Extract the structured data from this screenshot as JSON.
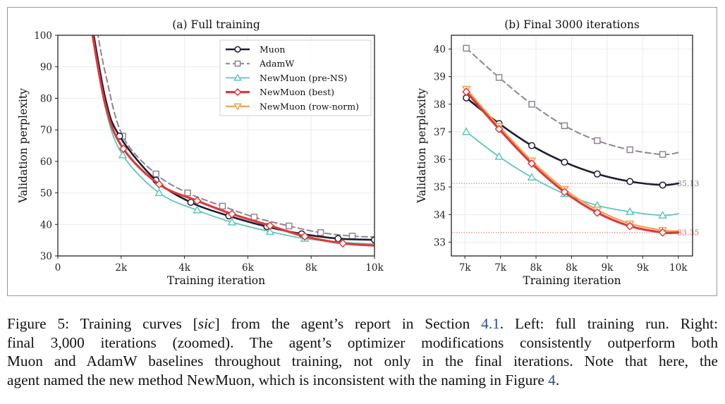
{
  "figure": {
    "caption": {
      "line1_a": "Figure 5: Training curves [",
      "line1_sic": "sic",
      "line1_b": "] from the agent’s report in Section ",
      "line1_ref": "4.1",
      "line1_c": ". Left: full training run. Right:",
      "line2": "final 3,000 iterations (zoomed).  The agent’s optimizer modifications consistently outperform both",
      "line3": "Muon and AdamW baselines throughout training, not only in the final iterations. Note that here, the",
      "line4_a": "agent named the new method NewMuon, which is inconsistent with the naming in Figure ",
      "line4_ref": "4",
      "line4_b": "."
    },
    "link_color": "#2b4f86"
  },
  "chart_data": [
    {
      "type": "line",
      "title": "(a) Full training",
      "xlabel": "Training iteration",
      "ylabel": "Validation perplexity",
      "xlim": [
        0,
        10000
      ],
      "ylim": [
        30,
        100
      ],
      "xticks": [
        0,
        2000,
        4000,
        6000,
        8000,
        10000
      ],
      "xtick_labels": [
        "0",
        "2k",
        "4k",
        "6k",
        "8k",
        "10k"
      ],
      "yticks": [
        30,
        40,
        50,
        60,
        70,
        80,
        90,
        100
      ],
      "ytick_labels": [
        "30",
        "40",
        "50",
        "60",
        "70",
        "80",
        "90",
        "100"
      ],
      "grid": true,
      "legend": "top-right",
      "series": [
        {
          "name": "AdamW",
          "color": "#8f8590",
          "marker": "square",
          "dashed": true,
          "x": [
            1200,
            1500,
            2050,
            3100,
            4100,
            5200,
            6200,
            7300,
            8300,
            9300,
            10000
          ],
          "y": [
            104,
            88,
            68,
            56,
            50,
            45.8,
            42.3,
            39.5,
            37.4,
            36.3,
            36.0
          ],
          "markers_at": [
            2050,
            3100,
            4100,
            5200,
            6200,
            7300,
            8300,
            9300
          ]
        },
        {
          "name": "Muon",
          "color": "#1c1e33",
          "marker": "circle",
          "dashed": false,
          "x": [
            1000,
            1500,
            1950,
            3100,
            4200,
            5400,
            6600,
            7700,
            8850,
            10000
          ],
          "y": [
            108,
            80,
            68,
            54,
            47,
            42.7,
            39.3,
            37.0,
            35.5,
            35.1
          ],
          "markers_at": [
            1950,
            3100,
            4200,
            5400,
            6600,
            7700,
            8850,
            10000
          ]
        },
        {
          "name": "NewMuon (pre-NS)",
          "color": "#5ec8be",
          "marker": "triangle-up",
          "dashed": false,
          "x": [
            1000,
            1500,
            2050,
            3200,
            4400,
            5500,
            6700,
            7800,
            9000,
            10000
          ],
          "y": [
            106,
            77,
            62,
            50,
            44.5,
            40.7,
            37.7,
            35.5,
            34.3,
            33.8
          ],
          "markers_at": [
            2050,
            3200,
            4400,
            5500,
            6700,
            7800
          ]
        },
        {
          "name": "NewMuon (row-norm)",
          "color": "#f0a050",
          "marker": "triangle-down",
          "dashed": false,
          "x": [
            1000,
            1500,
            2070,
            3200,
            4400,
            5500,
            6700,
            7800,
            9000,
            10000
          ],
          "y": [
            106.1,
            78.1,
            64.1,
            52.8,
            47.6,
            43.4,
            39.7,
            36.3,
            34.1,
            33.4
          ],
          "markers_at": []
        },
        {
          "name": "NewMuon (best)",
          "color": "#dd3a3a",
          "marker": "diamond",
          "dashed": false,
          "x": [
            1000,
            1500,
            2070,
            3200,
            4400,
            5500,
            6700,
            7800,
            9000,
            10000
          ],
          "y": [
            106,
            78,
            64,
            52.7,
            47.5,
            43.3,
            39.6,
            36.2,
            34.0,
            33.3
          ],
          "markers_at": [
            2070,
            3200,
            4400,
            5500,
            6700,
            7800,
            9000
          ]
        }
      ]
    },
    {
      "type": "line",
      "title": "(b) Final 3000 iterations",
      "xlabel": "Training iteration",
      "ylabel": "Validation perplexity",
      "xlim": [
        6810,
        10200
      ],
      "ylim": [
        32.5,
        40.5
      ],
      "xticks": [
        7000,
        7500,
        8000,
        8500,
        9000,
        9500,
        10000
      ],
      "xtick_labels": [
        "7k",
        "7k",
        "8k",
        "8k",
        "9k",
        "9k",
        "10k"
      ],
      "yticks": [
        33,
        34,
        35,
        36,
        37,
        38,
        39,
        40
      ],
      "ytick_labels": [
        "33",
        "34",
        "35",
        "36",
        "37",
        "38",
        "39",
        "40"
      ],
      "grid": true,
      "reference_lines": [
        {
          "y": 35.13,
          "label": "35.13",
          "color": "#8a8a8a"
        },
        {
          "y": 33.35,
          "label": "33.35",
          "color": "#e36a6a"
        }
      ],
      "series": [
        {
          "name": "AdamW",
          "color": "#8f8590",
          "marker": "square",
          "dashed": true,
          "x": [
            7020,
            7480,
            7940,
            8400,
            8860,
            9320,
            9780,
            10000
          ],
          "y": [
            40.03,
            38.97,
            38.0,
            37.22,
            36.68,
            36.35,
            36.18,
            36.25
          ],
          "markers_at": [
            7020,
            7480,
            7940,
            8400,
            8860,
            9320,
            9780
          ]
        },
        {
          "name": "Muon",
          "color": "#1c1e33",
          "marker": "circle",
          "dashed": false,
          "x": [
            7020,
            7480,
            7940,
            8400,
            8860,
            9320,
            9780,
            10000
          ],
          "y": [
            38.23,
            37.3,
            36.5,
            35.9,
            35.47,
            35.2,
            35.07,
            35.13
          ],
          "markers_at": [
            7020,
            7480,
            7940,
            8400,
            8860,
            9320,
            9780
          ]
        },
        {
          "name": "NewMuon (pre-NS)",
          "color": "#5ec8be",
          "marker": "triangle-up",
          "dashed": false,
          "x": [
            7020,
            7480,
            7940,
            8400,
            8860,
            9320,
            9780,
            10000
          ],
          "y": [
            37.0,
            36.1,
            35.35,
            34.75,
            34.33,
            34.1,
            33.97,
            34.03
          ],
          "markers_at": [
            7020,
            7480,
            7940,
            8400,
            8860,
            9320,
            9780
          ]
        },
        {
          "name": "NewMuon (row-norm)",
          "color": "#f0a050",
          "marker": "triangle-down",
          "dashed": false,
          "x": [
            7020,
            7480,
            7940,
            8400,
            8860,
            9320,
            9780,
            10000
          ],
          "y": [
            38.55,
            37.2,
            35.95,
            34.92,
            34.17,
            33.67,
            33.43,
            33.4
          ],
          "markers_at": [
            7020,
            7480,
            7940,
            8400,
            8860,
            9320,
            9780
          ]
        },
        {
          "name": "NewMuon (best)",
          "color": "#dd3a3a",
          "marker": "diamond",
          "dashed": false,
          "x": [
            7020,
            7480,
            7940,
            8400,
            8860,
            9320,
            9780,
            10000
          ],
          "y": [
            38.45,
            37.1,
            35.85,
            34.82,
            34.07,
            33.58,
            33.35,
            33.35
          ],
          "markers_at": [
            7020,
            7480,
            7940,
            8400,
            8860,
            9320,
            9780
          ]
        }
      ]
    }
  ],
  "legend": {
    "entries": [
      "Muon",
      "AdamW",
      "NewMuon (pre-NS)",
      "NewMuon (best)",
      "NewMuon (row-norm)"
    ]
  }
}
